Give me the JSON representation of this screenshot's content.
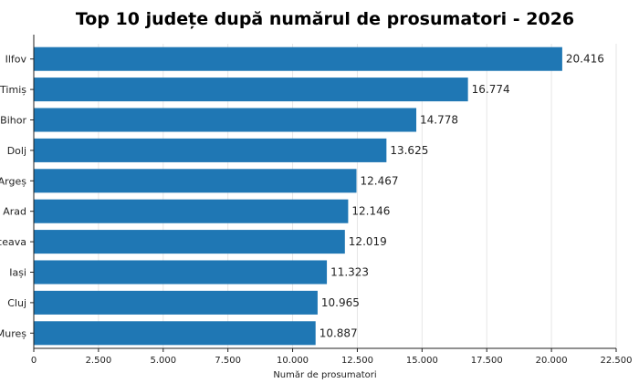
{
  "chart_data": {
    "type": "bar",
    "orientation": "horizontal",
    "title": "Top 10 județe după numărul de prosumatori - 2026",
    "xlabel": "Număr de prosumatori",
    "ylabel": "",
    "categories": [
      "Ilfov",
      "Timiș",
      "Bihor",
      "Dolj",
      "Argeș",
      "Arad",
      "ceava",
      "Iași",
      "Cluj",
      "Mureș"
    ],
    "values": [
      20416,
      16774,
      14778,
      13625,
      12467,
      12146,
      12019,
      11323,
      10965,
      10887
    ],
    "value_labels": [
      "20.416",
      "16.774",
      "14.778",
      "13.625",
      "12.467",
      "12.146",
      "12.019",
      "11.323",
      "10.965",
      "10.887"
    ],
    "xlim": [
      0,
      22500
    ],
    "xticks": [
      0,
      2500,
      5000,
      7500,
      10000,
      12500,
      15000,
      17500,
      20000,
      22500
    ],
    "xtick_labels": [
      "0",
      "2.500",
      "5.000",
      "7.500",
      "10.000",
      "12.500",
      "15.000",
      "17.500",
      "20.000",
      "22.500"
    ],
    "bar_color": "#1f77b4",
    "grid": "vertical",
    "grid_color": "#e6e6e6"
  }
}
